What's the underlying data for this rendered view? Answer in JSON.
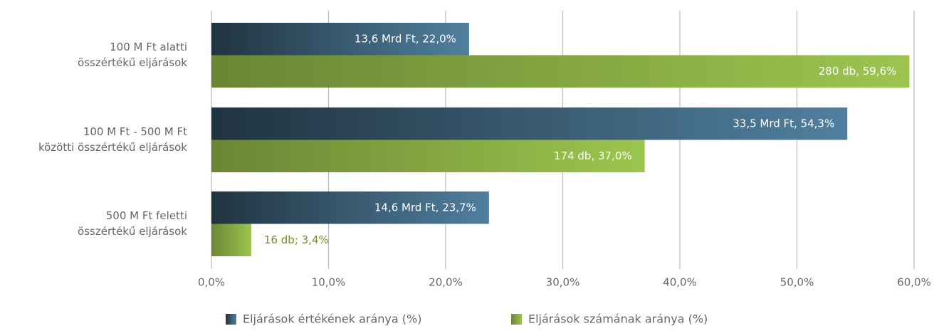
{
  "chart_data": {
    "type": "bar",
    "orientation": "horizontal",
    "categories": [
      [
        "100 M Ft alatti",
        "összértékű eljárások"
      ],
      [
        "100 M Ft - 500 M Ft",
        "közötti összértékű eljárások"
      ],
      [
        "500 M Ft feletti",
        "összértékű eljárások"
      ]
    ],
    "series": [
      {
        "name": "Eljárások értékének aránya (%)",
        "color": "#50809f",
        "values": [
          22.0,
          54.3,
          23.7
        ],
        "value_labels": [
          "13,6 Mrd Ft, 22,0%",
          "33,5 Mrd Ft, 54,3%",
          "14,6 Mrd Ft, 23,7%"
        ]
      },
      {
        "name": "Eljárások számának aránya (%)",
        "color": "#9cc54e",
        "values": [
          59.6,
          37.0,
          3.4
        ],
        "value_labels": [
          "280 db, 59,6%",
          "174 db, 37,0%",
          "16 db; 3,4%"
        ]
      }
    ],
    "xlim": [
      0,
      60
    ],
    "xticks": [
      {
        "value": 0,
        "label": "0,0%"
      },
      {
        "value": 10,
        "label": "10,0%"
      },
      {
        "value": 20,
        "label": "20,0%"
      },
      {
        "value": 30,
        "label": "30,0%"
      },
      {
        "value": 40,
        "label": "40,0%"
      },
      {
        "value": 50,
        "label": "50,0%"
      },
      {
        "value": 60,
        "label": "60,0%"
      }
    ],
    "grid": true,
    "legend": "bottom"
  }
}
